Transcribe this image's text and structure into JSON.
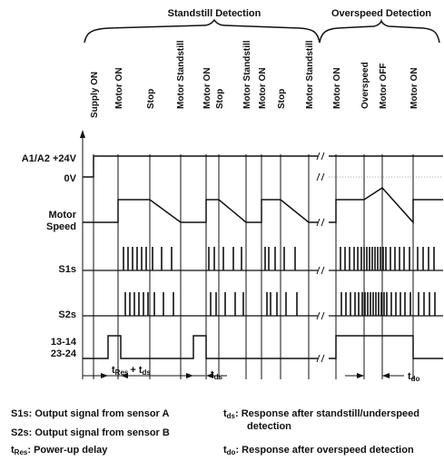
{
  "headers": {
    "standstill": "Standstill Detection",
    "overspeed": "Overspeed Detection"
  },
  "events": {
    "supply_on": "Supply ON",
    "motor_on": "Motor ON",
    "stop": "Stop",
    "motor_standstill": "Motor Standstill",
    "overspeed": "Overspeed",
    "motor_off": "Motor OFF"
  },
  "rows": {
    "supply_24v": "A1/A2 +24V",
    "supply_0v": "0V",
    "motor_speed_line1": "Motor",
    "motor_speed_line2": "Speed",
    "s1s": "S1s",
    "s2s": "S2s",
    "output_line1": "13-14",
    "output_line2": "23-24"
  },
  "timing": {
    "t_res_main": "t",
    "t_res_sub": "Res",
    "plus": "+ t",
    "t_ds_sub": "ds",
    "t_main": "t",
    "t_do_sub": "do"
  },
  "legend": {
    "s1s_key": "S1s:",
    "s1s_text": "Output signal from sensor A",
    "s2s_key": "S2s:",
    "s2s_text": "Output signal from sensor B",
    "tres_main": "t",
    "tres_sub": "Res",
    "tres_text": ": Power-up delay",
    "tds_main": "t",
    "tds_sub": "ds",
    "tds_text": ": Response after standstill/underspeed",
    "tds_text2": "detection",
    "tdo_main": "t",
    "tdo_sub": "do",
    "tdo_text": ": Response after overspeed detection"
  }
}
